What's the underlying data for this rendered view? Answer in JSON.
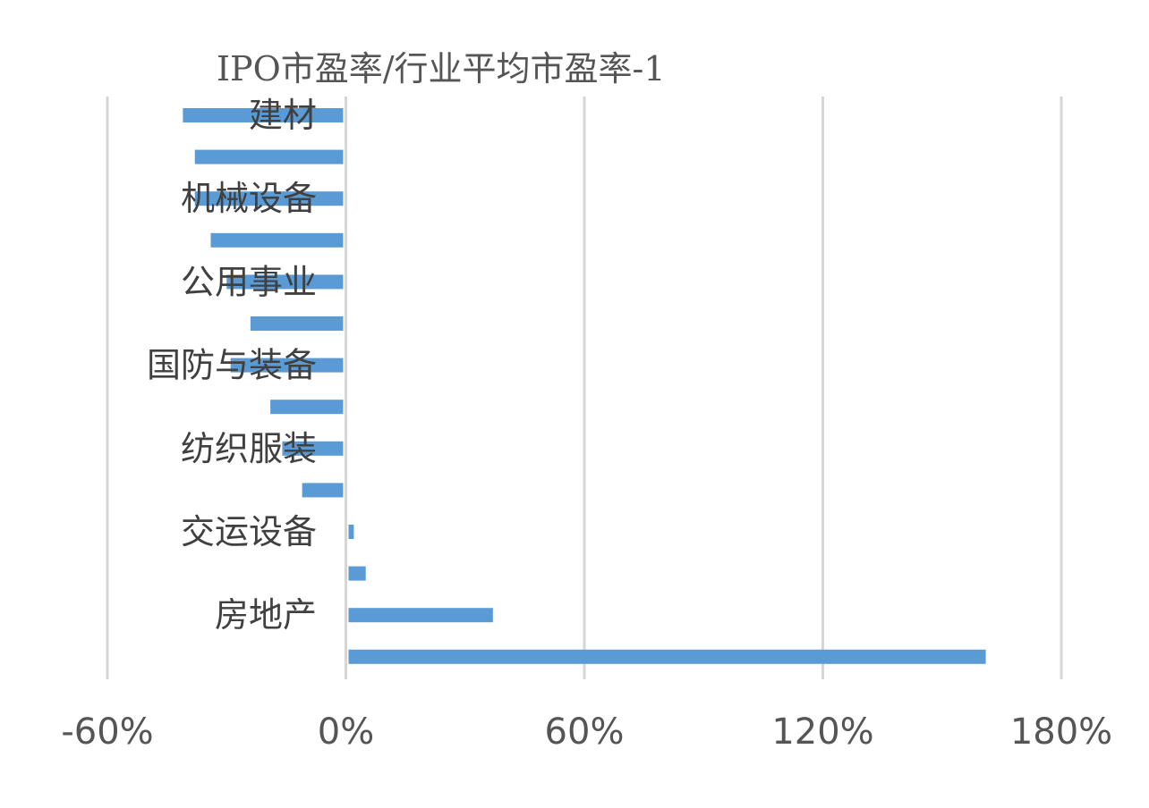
{
  "chart_data": {
    "type": "bar",
    "orientation": "horizontal",
    "title": "IPO市盈率/行业平均市盈率-1",
    "xlabel": "",
    "ylabel": "",
    "xlim": [
      -60,
      180
    ],
    "x_ticks": [
      -60,
      0,
      60,
      120,
      180
    ],
    "x_tick_labels": [
      "-60%",
      "0%",
      "60%",
      "120%",
      "180%"
    ],
    "value_unit": "%",
    "grid": true,
    "legend": "none",
    "bar_color": "#5b9bd5",
    "categories": [
      "建材",
      "",
      "机械设备",
      "",
      "公用事业",
      "",
      "国防与装备",
      "",
      "纺织服装",
      "",
      "交运设备",
      "",
      "房地产",
      ""
    ],
    "values": [
      -41,
      -38,
      -38,
      -34,
      -30,
      -24,
      -29,
      -19,
      -16,
      -11,
      2,
      5,
      37,
      161
    ]
  }
}
